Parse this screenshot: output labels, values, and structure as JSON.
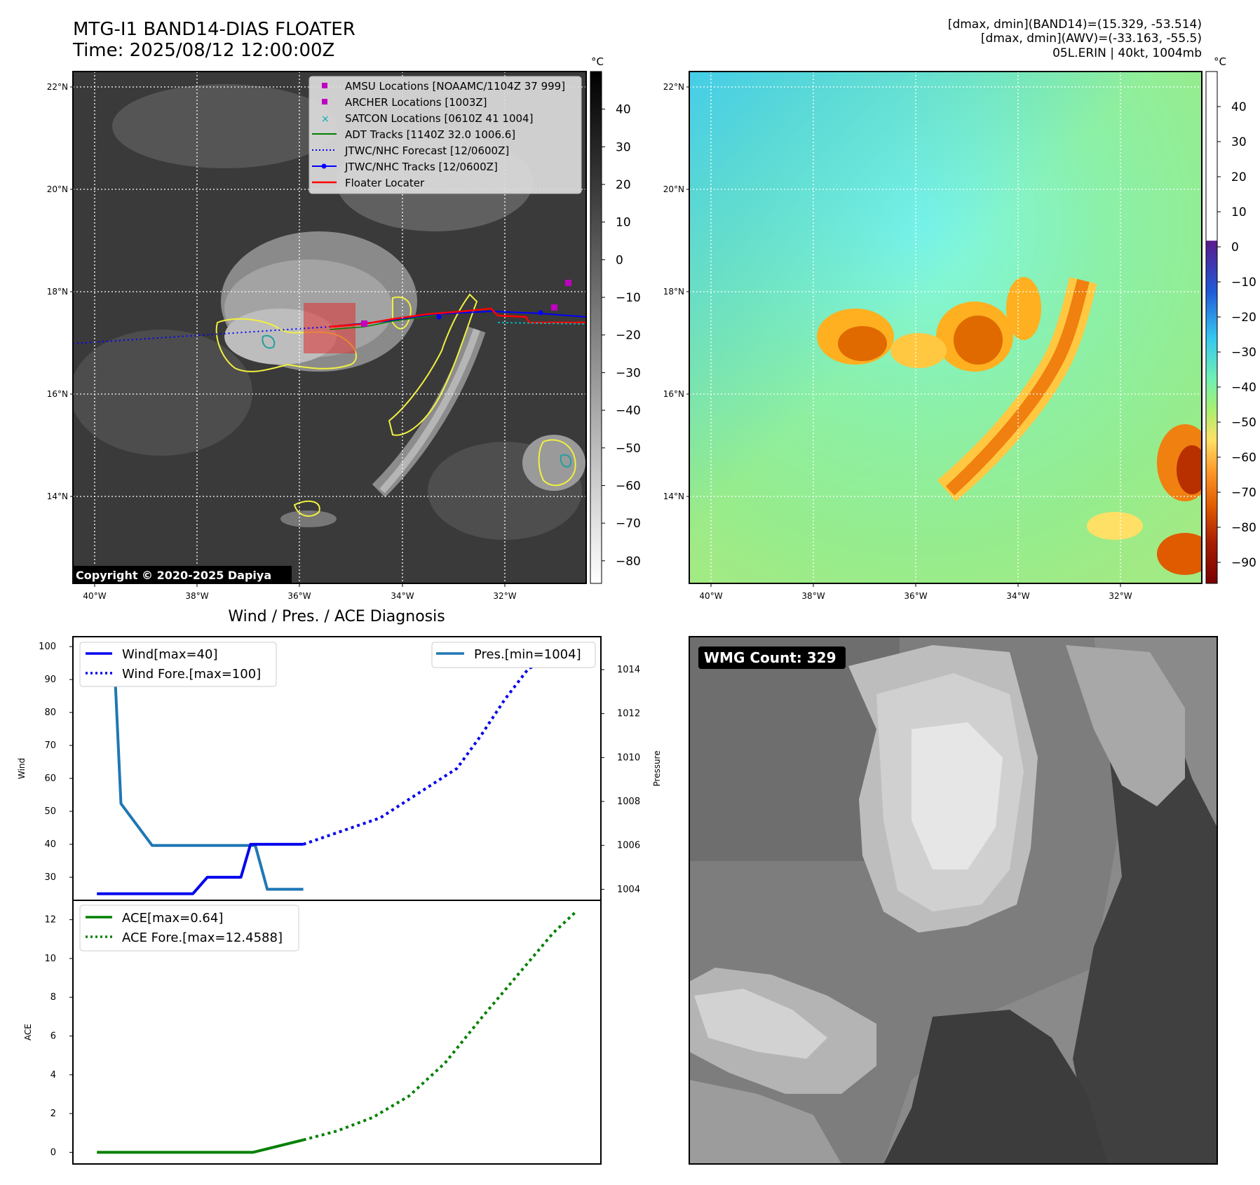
{
  "header": {
    "title_line1": "MTG-I1 BAND14-DIAS FLOATER",
    "title_line2": "Time: 2025/08/12 12:00:00Z",
    "info_line1": "[dmax, dmin](BAND14)=(15.329, -53.514)",
    "info_line2": "[dmax, dmin](AWV)=(-33.163, -55.5)",
    "info_line3": "05L.ERIN | 40kt, 1004mb"
  },
  "map_axes": {
    "lat_labels": [
      "22°N",
      "20°N",
      "18°N",
      "16°N",
      "14°N"
    ],
    "lon_labels": [
      "40°W",
      "38°W",
      "36°W",
      "34°W",
      "32°W"
    ]
  },
  "ir_map": {
    "copyright": "Copyright © 2020-2025 Dapiya",
    "colorbar_unit": "°C",
    "colorbar_ticks": [
      "40",
      "30",
      "20",
      "10",
      "0",
      "−10",
      "−20",
      "−30",
      "−40",
      "−50",
      "−60",
      "−70",
      "−80"
    ],
    "legend": [
      {
        "label": "AMSU Locations [NOAAMC/1104Z 37 999]",
        "color": "#c000c0",
        "icon": "square-marker-icon"
      },
      {
        "label": "ARCHER Locations [1003Z]",
        "color": "#c000c0",
        "icon": "square-marker-icon"
      },
      {
        "label": "SATCON Locations [0610Z 41 1004]",
        "color": "#00b0b0",
        "icon": "x-marker-icon"
      },
      {
        "label": "ADT Tracks [1140Z 32.0 1006.6]",
        "color": "#008000",
        "icon": "solid-line-icon"
      },
      {
        "label": "JTWC/NHC Forecast [12/0600Z]",
        "color": "#0000ff",
        "icon": "dotted-line-icon"
      },
      {
        "label": "JTWC/NHC Tracks [12/0600Z]",
        "color": "#0000ff",
        "icon": "line-dot-icon"
      },
      {
        "label": "Floater Locater",
        "color": "#ff0000",
        "icon": "solid-line-icon"
      }
    ]
  },
  "awv_map": {
    "colorbar_unit": "°C",
    "colorbar_ticks": [
      "40",
      "30",
      "20",
      "10",
      "0",
      "−10",
      "−20",
      "−30",
      "−40",
      "−50",
      "−60",
      "−70",
      "−80",
      "−90"
    ]
  },
  "wmg": {
    "label": "WMG Count: 329"
  },
  "chart_data": [
    {
      "type": "line",
      "title": "Wind / Pres. / ACE Diagnosis",
      "xlabel": "",
      "ylabel": "Wind",
      "y2label": "Pressure",
      "ylim": [
        23,
        103
      ],
      "y2lim": [
        1003.5,
        1015.5
      ],
      "xlim": [
        0,
        22
      ],
      "yticks": [
        30,
        40,
        50,
        60,
        70,
        80,
        90,
        100
      ],
      "y2ticks": [
        1004,
        1006,
        1008,
        1010,
        1012,
        1014
      ],
      "legend_left": [
        "Wind[max=40]",
        "Wind Fore.[max=100]"
      ],
      "legend_right": [
        "Pres.[min=1004]"
      ],
      "series": [
        {
          "name": "Wind[max=40]",
          "axis": "left",
          "style": "solid",
          "color": "#0000ee",
          "x": [
            1,
            5,
            5.6,
            7,
            7.4,
            9,
            9.6
          ],
          "values": [
            25,
            25,
            30,
            30,
            40,
            40,
            40
          ]
        },
        {
          "name": "Wind Fore.[max=100]",
          "axis": "left",
          "style": "dotted",
          "color": "#0000ee",
          "x": [
            9.6,
            12.8,
            16,
            17,
            18,
            19,
            20,
            21
          ],
          "values": [
            40,
            48,
            63,
            73,
            84,
            93.5,
            95,
            100
          ]
        },
        {
          "name": "Pres.[min=1004]",
          "axis": "right",
          "style": "solid",
          "color": "#1f77b4",
          "x": [
            1,
            1.7,
            2,
            3.3,
            7.6,
            8.1,
            9.6
          ],
          "values": [
            1015,
            1015,
            1007.9,
            1006,
            1006,
            1004,
            1004
          ]
        }
      ]
    },
    {
      "type": "line",
      "title": "",
      "ylabel": "ACE",
      "ylim": [
        -0.6,
        13
      ],
      "xlim": [
        0,
        22
      ],
      "yticks": [
        0,
        2,
        4,
        6,
        8,
        10,
        12
      ],
      "legend": [
        "ACE[max=0.64]",
        "ACE Fore.[max=12.4588]"
      ],
      "series": [
        {
          "name": "ACE[max=0.64]",
          "style": "solid",
          "color": "#008000",
          "x": [
            1,
            7.5,
            9.6
          ],
          "values": [
            0,
            0,
            0.64
          ]
        },
        {
          "name": "ACE Fore.[max=12.4588]",
          "style": "dotted",
          "color": "#008000",
          "x": [
            9.6,
            11,
            12.5,
            14,
            15.5,
            17,
            18.5,
            20,
            21
          ],
          "values": [
            0.64,
            1.1,
            1.8,
            2.9,
            4.6,
            6.9,
            9.1,
            11.3,
            12.46
          ]
        }
      ]
    }
  ]
}
